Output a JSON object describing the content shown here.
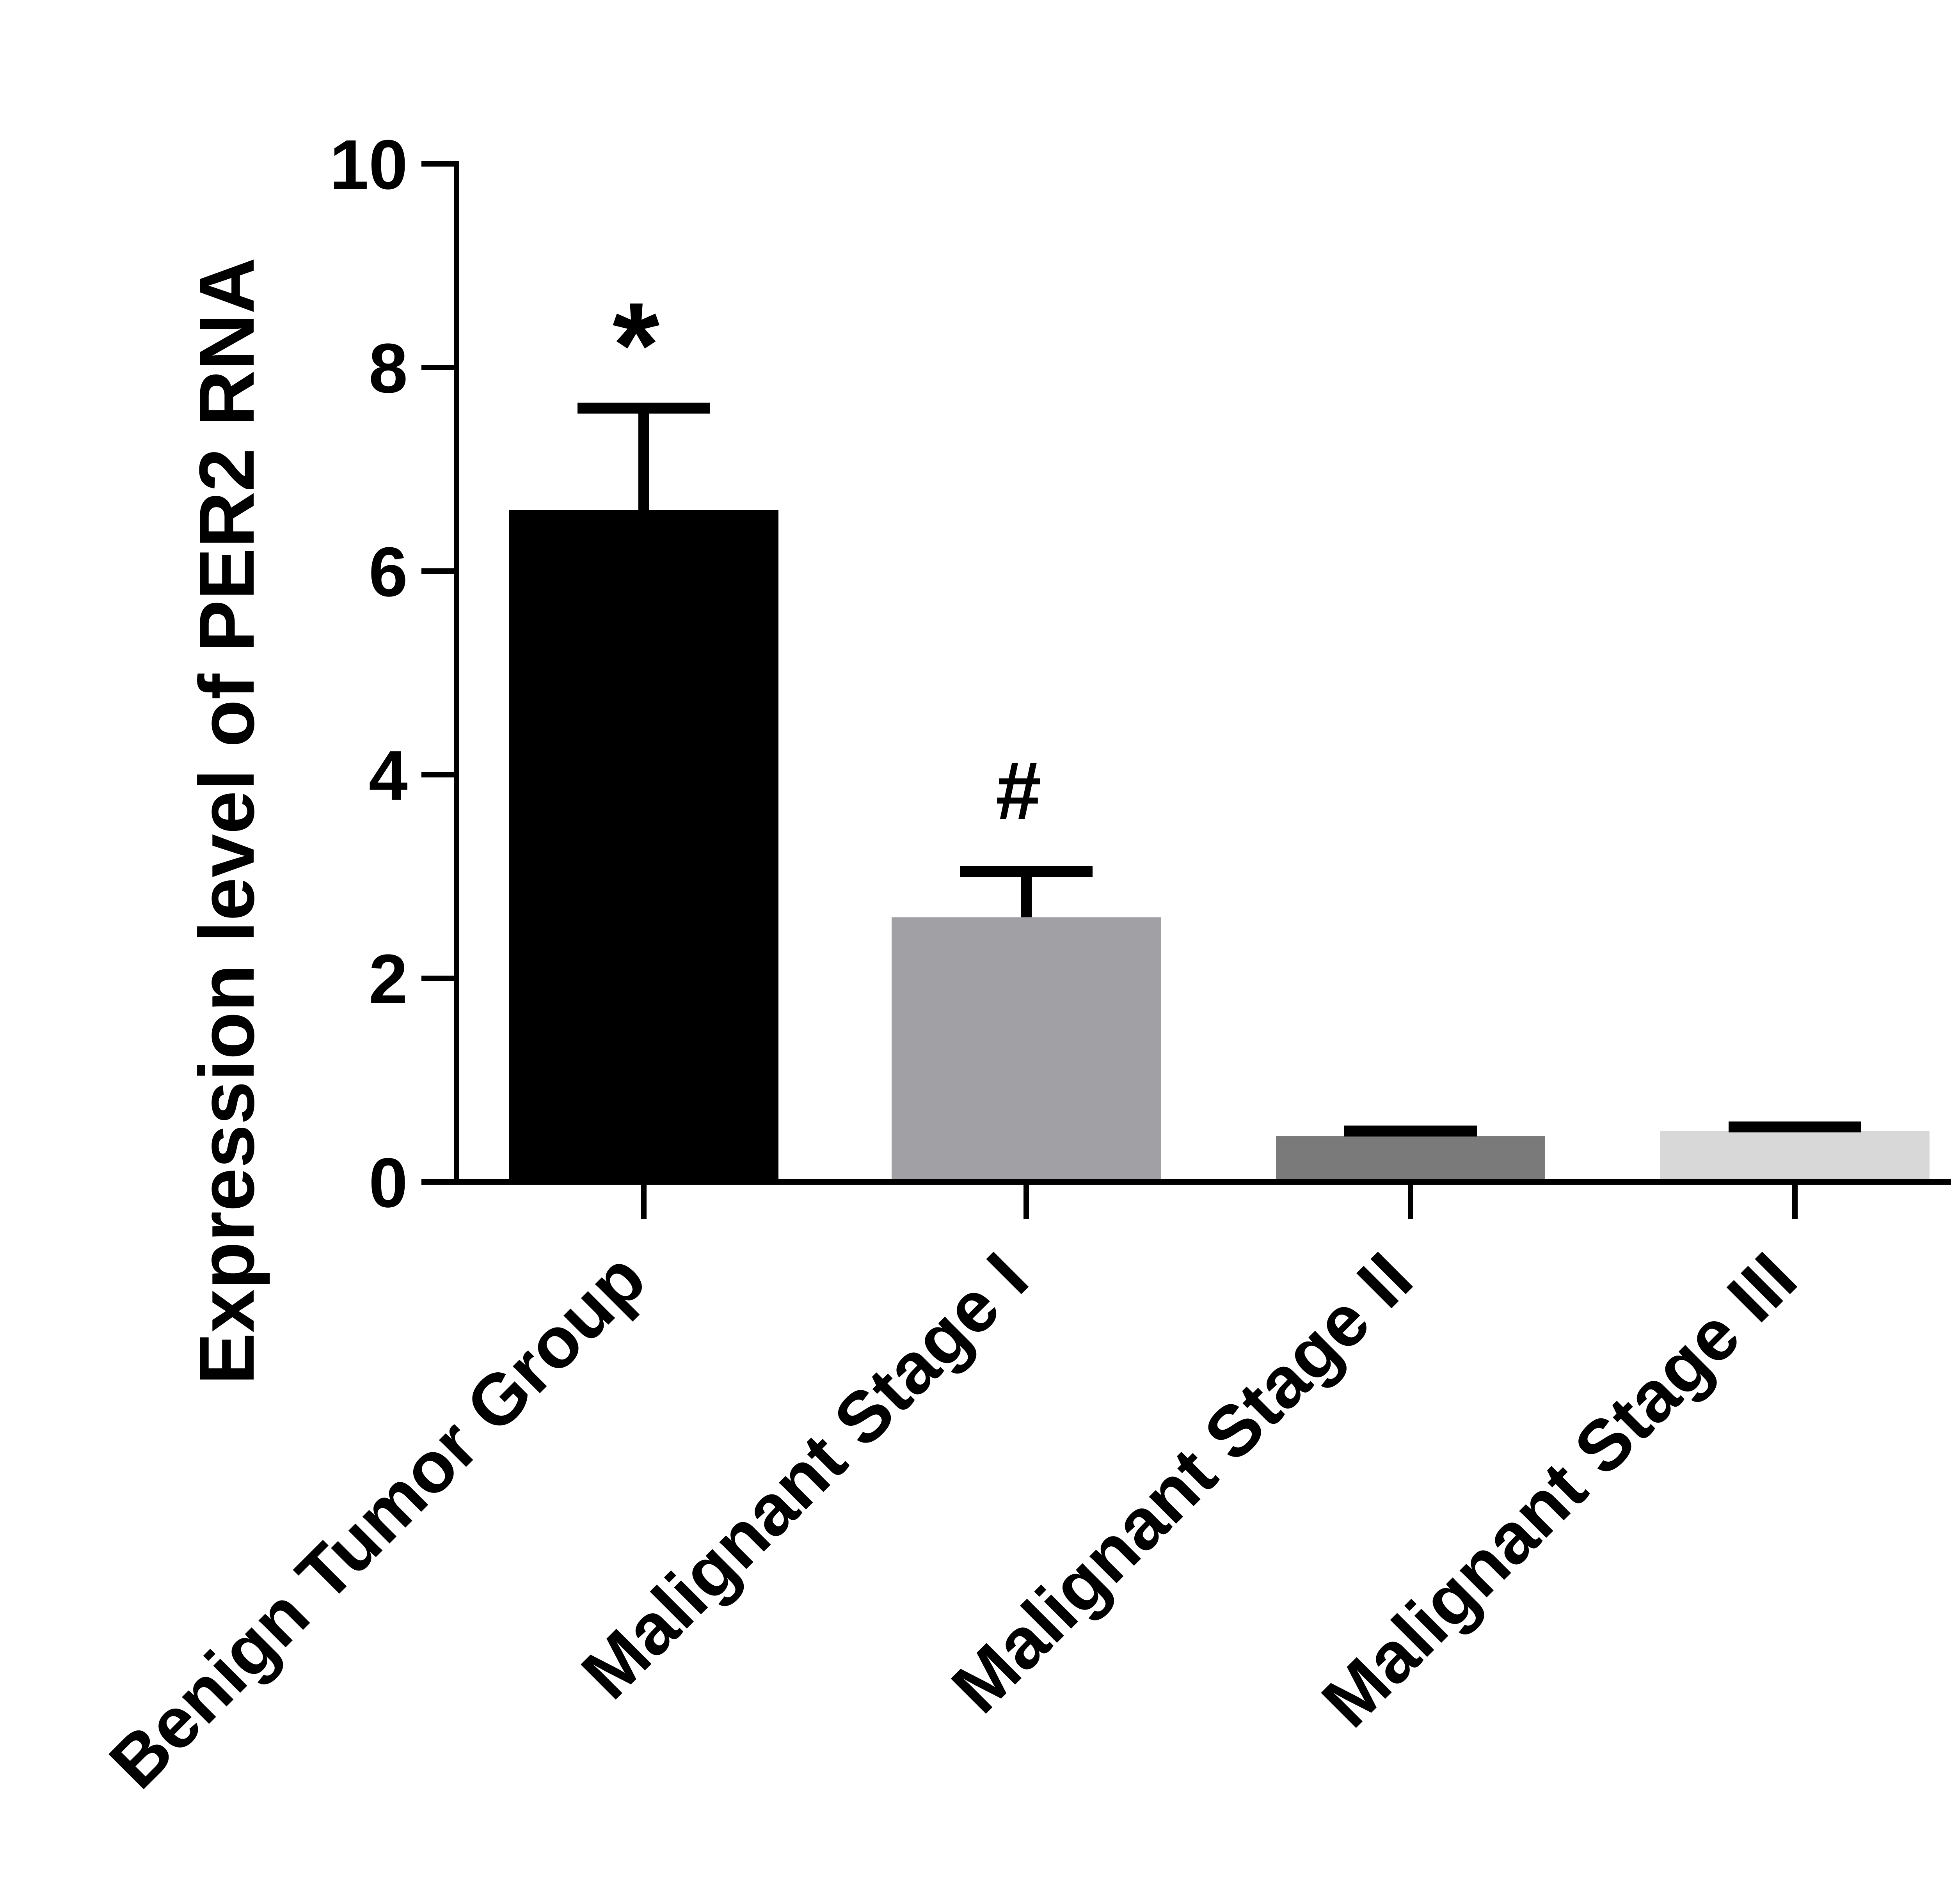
{
  "chart_data": {
    "type": "bar",
    "ylabel": "Expression level of PER2 RNA",
    "xlabel": "",
    "ylim": [
      0,
      10
    ],
    "yticks": [
      0,
      2,
      4,
      6,
      8,
      10
    ],
    "ytick_labels": [
      "0",
      "2",
      "4",
      "6",
      "8",
      "10"
    ],
    "categories": [
      "Benign Tumor Group",
      "Malignant Stage I",
      "Malignant Stage II",
      "Malignant Stage III"
    ],
    "values": [
      6.6,
      2.6,
      0.45,
      0.5
    ],
    "error_upper": [
      1.0,
      0.45,
      0.05,
      0.04
    ],
    "bar_colors": [
      "#000000",
      "#a1a1a5",
      "#7a7a7a",
      "#d8d8d8"
    ],
    "annotations": [
      "*",
      "#",
      "",
      ""
    ],
    "grid": false,
    "legend": "none"
  }
}
